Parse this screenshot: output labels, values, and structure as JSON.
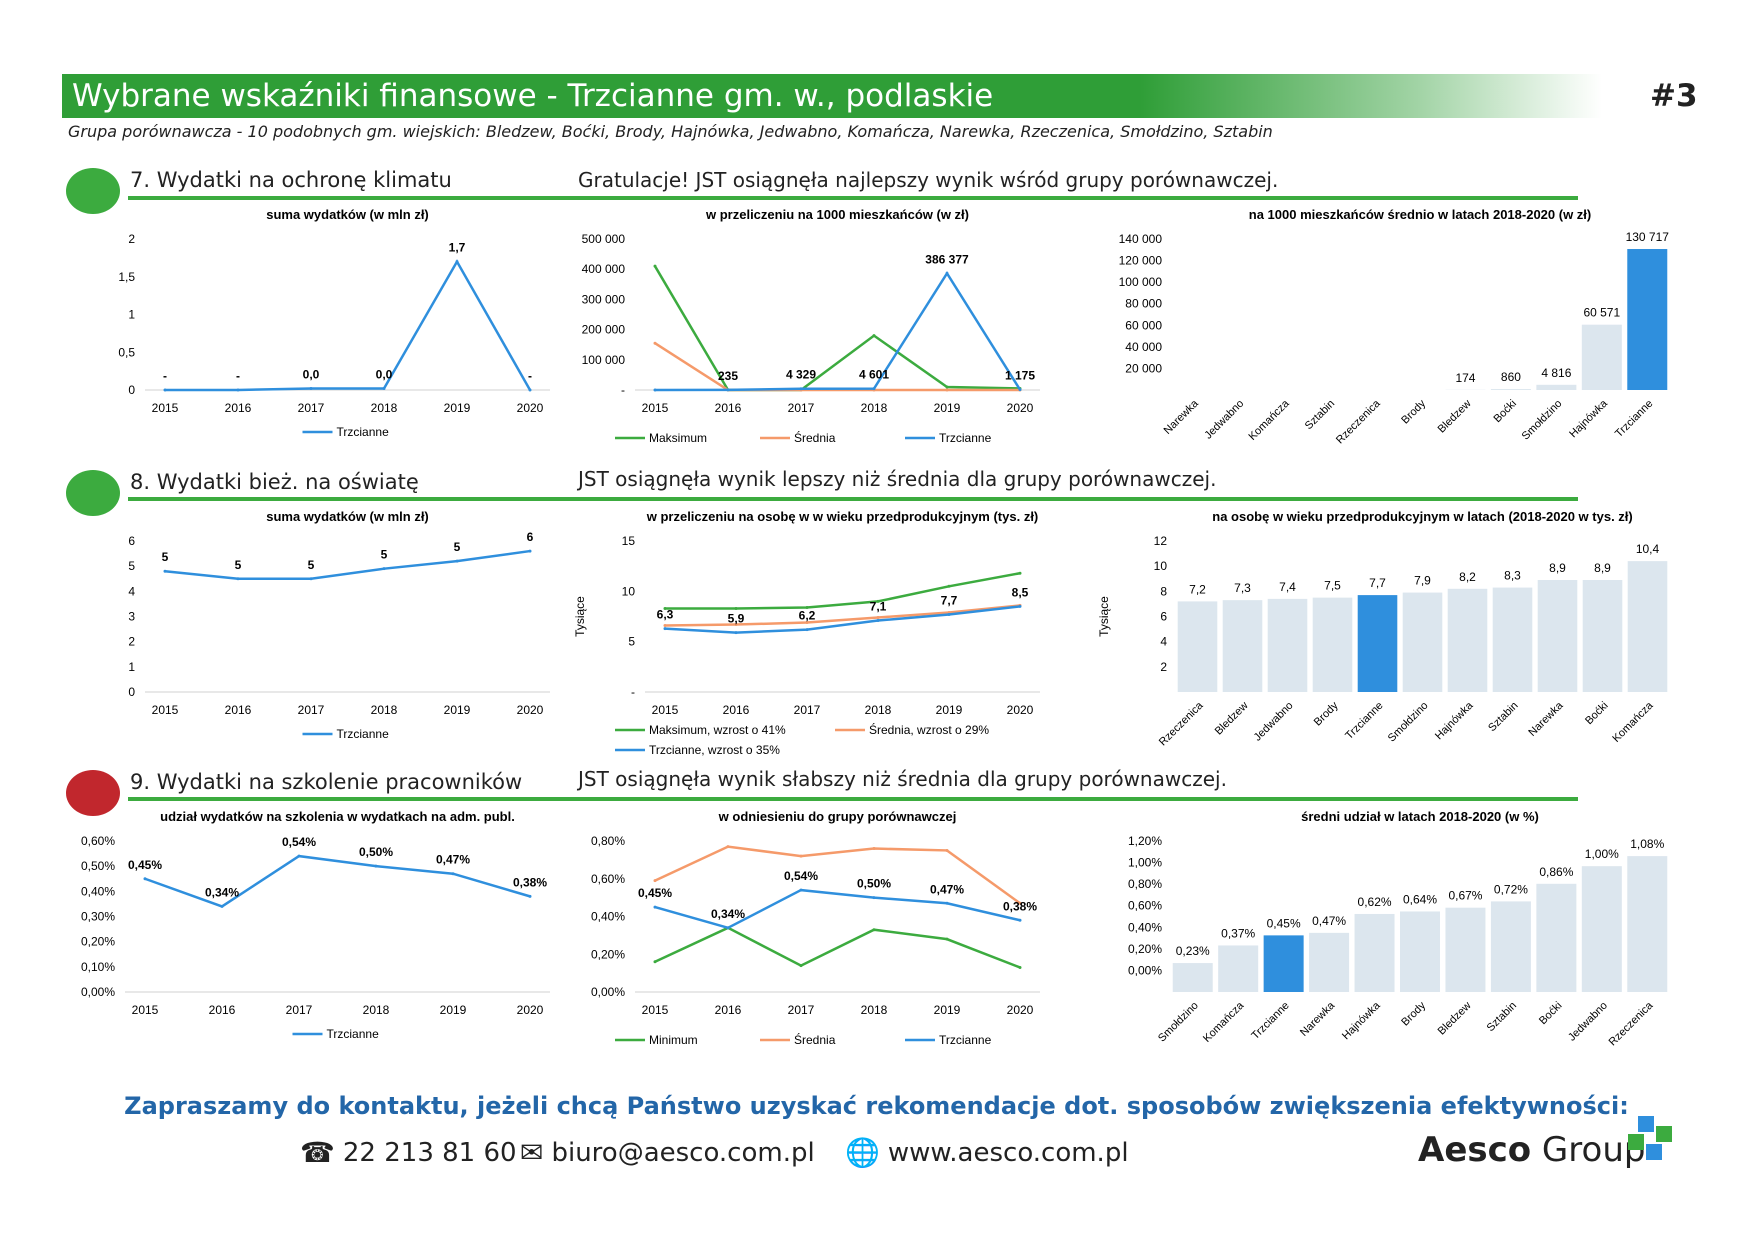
{
  "header": {
    "title": "Wybrane wskaźniki finansowe - Trzcianne gm. w., podlaskie",
    "page_number": "#3",
    "subtitle": "Grupa porównawcza - 10 podobnych gm. wiejskich: Bledzew, Boćki, Brody, Hajnówka, Jedwabno, Komańcza, Narewka, Rzeczenica, Smołdzino, Sztabin"
  },
  "sections": [
    {
      "title": "7. Wydatki na ochronę klimatu",
      "message": "Gratulacje! JST osiągnęła najlepszy wynik wśród grupy porównawczej.",
      "status_color": "#3cab3f"
    },
    {
      "title": "8. Wydatki bież. na oświatę",
      "message": "JST osiągnęła wynik lepszy niż średnia dla grupy porównawczej.",
      "status_color": "#3cab3f"
    },
    {
      "title": "9. Wydatki na szkolenie pracowników",
      "message": "JST osiągnęła wynik słabszy niż średnia dla grupy porównawczej.",
      "status_color": "#c1272d"
    }
  ],
  "colors": {
    "green": "#3cab3f",
    "blue": "#2f8fdd",
    "orange": "#f59a6a",
    "light_bar": "#dce6ee",
    "cta": "#2366a8"
  },
  "chart_data": [
    {
      "id": "c7a",
      "type": "line",
      "title": "suma wydatków (w mln zł)",
      "x": [
        "2015",
        "2016",
        "2017",
        "2018",
        "2019",
        "2020"
      ],
      "yticks": [
        "2",
        "1,5",
        "1",
        "0,5",
        "0"
      ],
      "ylim": [
        0,
        2
      ],
      "series": [
        {
          "name": "Trzcianne",
          "values": [
            0,
            0,
            0.02,
            0.02,
            1.7,
            0
          ],
          "labels": [
            "-",
            "-",
            "0,0",
            "0,0",
            "1,7",
            "-"
          ],
          "color": "#2f8fdd"
        }
      ]
    },
    {
      "id": "c7b",
      "type": "line",
      "title": "w przeliczeniu na 1000 mieszkańców (w zł)",
      "x": [
        "2015",
        "2016",
        "2017",
        "2018",
        "2019",
        "2020"
      ],
      "yticks": [
        "500 000",
        "400 000",
        "300 000",
        "200 000",
        "100 000",
        "-"
      ],
      "ylim": [
        0,
        500000
      ],
      "series": [
        {
          "name": "Maksimum",
          "values": [
            410000,
            0,
            0,
            180000,
            10000,
            5000
          ],
          "labels": [],
          "color": "#3cab3f"
        },
        {
          "name": "Średnia",
          "values": [
            155000,
            0,
            0,
            0,
            0,
            0
          ],
          "labels": [],
          "color": "#f59a6a"
        },
        {
          "name": "Trzcianne",
          "values": [
            0,
            235,
            4329,
            4601,
            386377,
            1175
          ],
          "labels": [
            "",
            "235",
            "4 329",
            "4 601",
            "386 377",
            "1 175"
          ],
          "color": "#2f8fdd"
        }
      ]
    },
    {
      "id": "c7c",
      "type": "bar",
      "title": "na 1000 mieszkańców średnio w latach 2018-2020 (w zł)",
      "categories": [
        "Narewka",
        "Jedwabno",
        "Komańcza",
        "Sztabin",
        "Rzeczenica",
        "Brody",
        "Bledzew",
        "Boćki",
        "Smołdzino",
        "Hajnówka",
        "Trzcianne"
      ],
      "values": [
        0,
        0,
        0,
        0,
        0,
        0,
        174,
        860,
        4816,
        60571,
        130717
      ],
      "labels": [
        "",
        "",
        "",
        "",
        "",
        "",
        "174",
        "860",
        "4 816",
        "60 571",
        "130 717"
      ],
      "highlight": "Trzcianne",
      "yticks": [
        "140 000",
        "120 000",
        "100 000",
        "80 000",
        "60 000",
        "40 000",
        "20 000"
      ],
      "ylim": [
        0,
        140000
      ]
    },
    {
      "id": "c8a",
      "type": "line",
      "title": "suma wydatków (w mln zł)",
      "x": [
        "2015",
        "2016",
        "2017",
        "2018",
        "2019",
        "2020"
      ],
      "yticks": [
        "6",
        "5",
        "4",
        "3",
        "2",
        "1",
        "0"
      ],
      "ylim": [
        0,
        6
      ],
      "series": [
        {
          "name": "Trzcianne",
          "values": [
            4.8,
            4.5,
            4.5,
            4.9,
            5.2,
            5.6
          ],
          "labels": [
            "5",
            "5",
            "5",
            "5",
            "5",
            "6"
          ],
          "color": "#2f8fdd"
        }
      ]
    },
    {
      "id": "c8b",
      "type": "line",
      "title": "w przeliczeniu na osobę w w wieku przedprodukcyjnym (tys. zł)",
      "ylabel": "Tysiące",
      "x": [
        "2015",
        "2016",
        "2017",
        "2018",
        "2019",
        "2020"
      ],
      "yticks": [
        "15",
        "10",
        "5",
        "-"
      ],
      "ylim": [
        0,
        15
      ],
      "series": [
        {
          "name": "Maksimum, wzrost o 41%",
          "values": [
            8.3,
            8.3,
            8.4,
            9.0,
            10.5,
            11.8
          ],
          "labels": [],
          "color": "#3cab3f"
        },
        {
          "name": "Średnia, wzrost o 29%",
          "values": [
            6.6,
            6.7,
            6.9,
            7.4,
            7.9,
            8.6
          ],
          "labels": [],
          "color": "#f59a6a"
        },
        {
          "name": "Trzcianne, wzrost o 35%",
          "values": [
            6.3,
            5.9,
            6.2,
            7.1,
            7.7,
            8.5
          ],
          "labels": [
            "6,3",
            "5,9",
            "6,2",
            "7,1",
            "7,7",
            "8,5"
          ],
          "color": "#2f8fdd"
        }
      ]
    },
    {
      "id": "c8c",
      "type": "bar",
      "title": "na osobę w wieku przedprodukcyjnym w latach (2018-2020 w tys. zł)",
      "ylabel": "Tysiące",
      "categories": [
        "Rzeczenica",
        "Bledzew",
        "Jedwabno",
        "Brody",
        "Trzcianne",
        "Smołdzino",
        "Hajnówka",
        "Sztabin",
        "Narewka",
        "Boćki",
        "Komańcza"
      ],
      "values": [
        7.2,
        7.3,
        7.4,
        7.5,
        7.7,
        7.9,
        8.2,
        8.3,
        8.9,
        8.9,
        10.4
      ],
      "labels": [
        "7,2",
        "7,3",
        "7,4",
        "7,5",
        "7,7",
        "7,9",
        "8,2",
        "8,3",
        "8,9",
        "8,9",
        "10,4"
      ],
      "highlight": "Trzcianne",
      "yticks": [
        "12",
        "10",
        "8",
        "6",
        "4",
        "2"
      ],
      "ylim": [
        0,
        12
      ]
    },
    {
      "id": "c9a",
      "type": "line",
      "title": "udział wydatków na szkolenia w wydatkach na adm. publ.",
      "x": [
        "2015",
        "2016",
        "2017",
        "2018",
        "2019",
        "2020"
      ],
      "yticks": [
        "0,60%",
        "0,50%",
        "0,40%",
        "0,30%",
        "0,20%",
        "0,10%",
        "0,00%"
      ],
      "ylim": [
        0,
        0.6
      ],
      "series": [
        {
          "name": "Trzcianne",
          "values": [
            0.45,
            0.34,
            0.54,
            0.5,
            0.47,
            0.38
          ],
          "labels": [
            "0,45%",
            "0,34%",
            "0,54%",
            "0,50%",
            "0,47%",
            "0,38%"
          ],
          "color": "#2f8fdd"
        }
      ]
    },
    {
      "id": "c9b",
      "type": "line",
      "title": "w odniesieniu do grupy porównawczej",
      "x": [
        "2015",
        "2016",
        "2017",
        "2018",
        "2019",
        "2020"
      ],
      "yticks": [
        "0,80%",
        "0,60%",
        "0,40%",
        "0,20%",
        "0,00%"
      ],
      "ylim": [
        0,
        0.8
      ],
      "series": [
        {
          "name": "Minimum",
          "values": [
            0.16,
            0.34,
            0.14,
            0.33,
            0.28,
            0.13
          ],
          "labels": [],
          "color": "#3cab3f"
        },
        {
          "name": "Średnia",
          "values": [
            0.59,
            0.77,
            0.72,
            0.76,
            0.75,
            0.47
          ],
          "labels": [],
          "color": "#f59a6a"
        },
        {
          "name": "Trzcianne",
          "values": [
            0.45,
            0.34,
            0.54,
            0.5,
            0.47,
            0.38
          ],
          "labels": [
            "0,45%",
            "0,34%",
            "0,54%",
            "0,50%",
            "0,47%",
            "0,38%"
          ],
          "color": "#2f8fdd"
        }
      ]
    },
    {
      "id": "c9c",
      "type": "bar",
      "title": "średni udział w latach 2018-2020 (w %)",
      "categories": [
        "Smołdzino",
        "Komańcza",
        "Trzcianne",
        "Narewka",
        "Hajnówka",
        "Brody",
        "Bledzew",
        "Sztabin",
        "Boćki",
        "Jedwabno",
        "Rzeczenica"
      ],
      "values": [
        0.23,
        0.37,
        0.45,
        0.47,
        0.62,
        0.64,
        0.67,
        0.72,
        0.86,
        1.0,
        1.08
      ],
      "labels": [
        "0,23%",
        "0,37%",
        "0,45%",
        "0,47%",
        "0,62%",
        "0,64%",
        "0,67%",
        "0,72%",
        "0,86%",
        "1,00%",
        "1,08%"
      ],
      "highlight": "Trzcianne",
      "yticks": [
        "1,20%",
        "1,00%",
        "0,80%",
        "0,60%",
        "0,40%",
        "0,20%",
        "0,00%"
      ],
      "ylim": [
        0,
        1.2
      ]
    }
  ],
  "footer": {
    "cta": "Zapraszamy do kontaktu, jeżeli chcą Państwo uzyskać rekomendacje dot.  sposobów zwiększenia efektywności:",
    "phone": "22 213 81 60",
    "email": "biuro@aesco.com.pl",
    "website": "www.aesco.com.pl",
    "logo_bold": "Aesco",
    "logo_rest": " Group",
    "phone_icon": "phone-icon",
    "email_icon": "envelope-icon",
    "web_icon": "globe-icon"
  }
}
